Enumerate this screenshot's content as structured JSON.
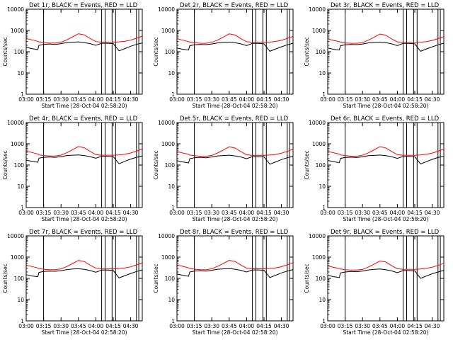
{
  "figure": {
    "background": "#ffffff"
  },
  "colors": {
    "events": "#000000",
    "lld": "#ff0000",
    "axes": "#000000"
  },
  "chart_data": [
    {
      "type": "line",
      "title": "Det 1r, BLACK = Events, RED = LLD",
      "xlabel": "Start Time (28-Oct-04 02:58:20)",
      "ylabel": "Counts/sec",
      "yscale": "log",
      "ylim": [
        1,
        10000
      ],
      "xlim": [
        "03:00",
        "04:40"
      ],
      "x_tick_labels": [
        "03:00",
        "03:15",
        "03:30",
        "03:45",
        "04:00",
        "04:15",
        "04:30"
      ],
      "y_tick_labels": [
        "1",
        "10",
        "100",
        "1000",
        "10000"
      ],
      "x": [
        "03:00",
        "03:05",
        "03:10",
        "03:11",
        "03:15",
        "03:20",
        "03:25",
        "03:30",
        "03:35",
        "03:40",
        "03:45",
        "03:50",
        "03:55",
        "04:00",
        "04:05",
        "04:10",
        "04:15",
        "04:20",
        "04:25",
        "04:30",
        "04:35",
        "04:40"
      ],
      "series": [
        {
          "name": "Events",
          "color": "#000000",
          "values": [
            160,
            140,
            125,
            200,
            220,
            230,
            220,
            240,
            270,
            280,
            290,
            270,
            240,
            200,
            250,
            250,
            240,
            110,
            140,
            180,
            220,
            260
          ]
        },
        {
          "name": "LLD",
          "color": "#ff0000",
          "values": [
            420,
            360,
            310,
            290,
            270,
            255,
            255,
            280,
            360,
            500,
            700,
            620,
            420,
            300,
            280,
            280,
            280,
            290,
            310,
            350,
            430,
            540
          ]
        }
      ],
      "vertical_markers": [
        "03:15",
        "04:05",
        "04:08",
        "04:14",
        "04:17",
        "04:35",
        "04:37"
      ]
    },
    {
      "type": "line",
      "title": "Det 2r, BLACK = Events, RED = LLD",
      "xlabel": "Start Time (28-Oct-04 02:58:20)",
      "ylabel": "Counts/sec",
      "yscale": "log",
      "ylim": [
        1,
        10000
      ],
      "xlim": [
        "03:00",
        "04:40"
      ],
      "x_tick_labels": [
        "03:00",
        "03:15",
        "03:30",
        "03:45",
        "04:00",
        "04:15",
        "04:30"
      ],
      "y_tick_labels": [
        "1",
        "10",
        "100",
        "1000",
        "10000"
      ],
      "x": [
        "03:00",
        "03:05",
        "03:10",
        "03:11",
        "03:15",
        "03:20",
        "03:25",
        "03:30",
        "03:35",
        "03:40",
        "03:45",
        "03:50",
        "03:55",
        "04:00",
        "04:05",
        "04:10",
        "04:15",
        "04:20",
        "04:25",
        "04:30",
        "04:35",
        "04:40"
      ],
      "series": [
        {
          "name": "Events",
          "color": "#000000",
          "values": [
            150,
            130,
            120,
            190,
            210,
            220,
            215,
            230,
            260,
            275,
            285,
            265,
            235,
            195,
            245,
            245,
            235,
            105,
            135,
            170,
            210,
            250
          ]
        },
        {
          "name": "LLD",
          "color": "#ff0000",
          "values": [
            410,
            350,
            300,
            285,
            265,
            250,
            250,
            275,
            350,
            490,
            690,
            610,
            410,
            295,
            275,
            275,
            275,
            285,
            305,
            345,
            420,
            530
          ]
        }
      ],
      "vertical_markers": [
        "03:15",
        "04:05",
        "04:08",
        "04:14",
        "04:17",
        "04:35",
        "04:37"
      ]
    },
    {
      "type": "line",
      "title": "Det 3r, BLACK = Events, RED = LLD",
      "xlabel": "Start Time (28-Oct-04 02:58:20)",
      "ylabel": "Counts/sec",
      "yscale": "log",
      "ylim": [
        1,
        10000
      ],
      "xlim": [
        "03:00",
        "04:40"
      ],
      "x_tick_labels": [
        "03:00",
        "03:15",
        "03:30",
        "03:45",
        "04:00",
        "04:15",
        "04:30"
      ],
      "y_tick_labels": [
        "1",
        "10",
        "100",
        "1000",
        "10000"
      ],
      "x": [
        "03:00",
        "03:05",
        "03:10",
        "03:11",
        "03:15",
        "03:20",
        "03:25",
        "03:30",
        "03:35",
        "03:40",
        "03:45",
        "03:50",
        "03:55",
        "04:00",
        "04:05",
        "04:10",
        "04:15",
        "04:20",
        "04:25",
        "04:30",
        "04:35",
        "04:40"
      ],
      "series": [
        {
          "name": "Events",
          "color": "#000000",
          "values": [
            150,
            130,
            120,
            190,
            210,
            220,
            215,
            230,
            260,
            275,
            285,
            265,
            235,
            195,
            245,
            245,
            235,
            105,
            135,
            170,
            210,
            250
          ]
        },
        {
          "name": "LLD",
          "color": "#ff0000",
          "values": [
            400,
            340,
            300,
            280,
            260,
            250,
            250,
            270,
            350,
            480,
            680,
            600,
            400,
            290,
            270,
            270,
            270,
            280,
            300,
            340,
            410,
            520
          ]
        }
      ],
      "vertical_markers": [
        "03:15",
        "04:05",
        "04:08",
        "04:14",
        "04:17",
        "04:35",
        "04:37"
      ]
    },
    {
      "type": "line",
      "title": "Det 4r, BLACK = Events, RED = LLD",
      "xlabel": "Start Time (28-Oct-04 02:58:20)",
      "ylabel": "Counts/sec",
      "yscale": "log",
      "ylim": [
        1,
        10000
      ],
      "xlim": [
        "03:00",
        "04:40"
      ],
      "x_tick_labels": [
        "03:00",
        "03:15",
        "03:30",
        "03:45",
        "04:00",
        "04:15",
        "04:30"
      ],
      "y_tick_labels": [
        "1",
        "10",
        "100",
        "1000",
        "10000"
      ],
      "x": [
        "03:00",
        "03:05",
        "03:10",
        "03:11",
        "03:15",
        "03:20",
        "03:25",
        "03:30",
        "03:35",
        "03:40",
        "03:45",
        "03:50",
        "03:55",
        "04:00",
        "04:05",
        "04:10",
        "04:15",
        "04:20",
        "04:25",
        "04:30",
        "04:35",
        "04:40"
      ],
      "series": [
        {
          "name": "Events",
          "color": "#000000",
          "values": [
            170,
            150,
            135,
            210,
            230,
            240,
            230,
            250,
            280,
            290,
            300,
            280,
            250,
            210,
            260,
            260,
            250,
            115,
            150,
            190,
            230,
            270
          ]
        },
        {
          "name": "LLD",
          "color": "#ff0000",
          "values": [
            450,
            390,
            330,
            300,
            280,
            265,
            265,
            290,
            380,
            530,
            740,
            650,
            440,
            310,
            290,
            290,
            290,
            300,
            320,
            370,
            450,
            570
          ]
        }
      ],
      "vertical_markers": [
        "03:15",
        "04:05",
        "04:08",
        "04:14",
        "04:17",
        "04:35",
        "04:37"
      ]
    },
    {
      "type": "line",
      "title": "Det 5r, BLACK = Events, RED = LLD",
      "xlabel": "Start Time (28-Oct-04 02:58:20)",
      "ylabel": "Counts/sec",
      "yscale": "log",
      "ylim": [
        1,
        10000
      ],
      "xlim": [
        "03:00",
        "04:40"
      ],
      "x_tick_labels": [
        "03:00",
        "03:15",
        "03:30",
        "03:45",
        "04:00",
        "04:15",
        "04:30"
      ],
      "y_tick_labels": [
        "1",
        "10",
        "100",
        "1000",
        "10000"
      ],
      "x": [
        "03:00",
        "03:05",
        "03:10",
        "03:11",
        "03:15",
        "03:20",
        "03:25",
        "03:30",
        "03:35",
        "03:40",
        "03:45",
        "03:50",
        "03:55",
        "04:00",
        "04:05",
        "04:10",
        "04:15",
        "04:20",
        "04:25",
        "04:30",
        "04:35",
        "04:40"
      ],
      "series": [
        {
          "name": "Events",
          "color": "#000000",
          "values": [
            160,
            140,
            125,
            200,
            220,
            230,
            220,
            240,
            270,
            280,
            290,
            270,
            240,
            200,
            250,
            250,
            240,
            110,
            140,
            180,
            220,
            260
          ]
        },
        {
          "name": "LLD",
          "color": "#ff0000",
          "values": [
            430,
            370,
            320,
            295,
            275,
            260,
            260,
            285,
            370,
            510,
            720,
            630,
            430,
            305,
            285,
            285,
            285,
            295,
            315,
            360,
            440,
            560
          ]
        }
      ],
      "vertical_markers": [
        "03:15",
        "04:05",
        "04:08",
        "04:14",
        "04:17",
        "04:35",
        "04:37"
      ]
    },
    {
      "type": "line",
      "title": "Det 6r, BLACK = Events, RED = LLD",
      "xlabel": "Start Time (28-Oct-04 02:58:20)",
      "ylabel": "Counts/sec",
      "yscale": "log",
      "ylim": [
        1,
        10000
      ],
      "xlim": [
        "03:00",
        "04:40"
      ],
      "x_tick_labels": [
        "03:00",
        "03:15",
        "03:30",
        "03:45",
        "04:00",
        "04:15",
        "04:30"
      ],
      "y_tick_labels": [
        "1",
        "10",
        "100",
        "1000",
        "10000"
      ],
      "x": [
        "03:00",
        "03:05",
        "03:10",
        "03:11",
        "03:15",
        "03:20",
        "03:25",
        "03:30",
        "03:35",
        "03:40",
        "03:45",
        "03:50",
        "03:55",
        "04:00",
        "04:05",
        "04:10",
        "04:15",
        "04:20",
        "04:25",
        "04:30",
        "04:35",
        "04:40"
      ],
      "series": [
        {
          "name": "Events",
          "color": "#000000",
          "values": [
            165,
            145,
            130,
            205,
            225,
            235,
            225,
            245,
            275,
            285,
            295,
            275,
            245,
            205,
            255,
            255,
            245,
            112,
            145,
            185,
            225,
            265
          ]
        },
        {
          "name": "LLD",
          "color": "#ff0000",
          "values": [
            440,
            380,
            325,
            300,
            280,
            262,
            262,
            288,
            375,
            520,
            730,
            640,
            435,
            308,
            288,
            288,
            288,
            298,
            318,
            365,
            445,
            565
          ]
        }
      ],
      "vertical_markers": [
        "03:15",
        "04:05",
        "04:08",
        "04:14",
        "04:17",
        "04:35",
        "04:37"
      ]
    },
    {
      "type": "line",
      "title": "Det 7r, BLACK = Events, RED = LLD",
      "xlabel": "Start Time (28-Oct-04 02:58:20)",
      "ylabel": "Counts/sec",
      "yscale": "log",
      "ylim": [
        1,
        10000
      ],
      "xlim": [
        "03:00",
        "04:40"
      ],
      "x_tick_labels": [
        "03:00",
        "03:15",
        "03:30",
        "03:45",
        "04:00",
        "04:15",
        "04:30"
      ],
      "y_tick_labels": [
        "1",
        "10",
        "100",
        "1000",
        "10000"
      ],
      "x": [
        "03:00",
        "03:05",
        "03:10",
        "03:11",
        "03:15",
        "03:20",
        "03:25",
        "03:30",
        "03:35",
        "03:40",
        "03:45",
        "03:50",
        "03:55",
        "04:00",
        "04:05",
        "04:10",
        "04:15",
        "04:20",
        "04:25",
        "04:30",
        "04:35",
        "04:40"
      ],
      "series": [
        {
          "name": "Events",
          "color": "#000000",
          "values": [
            150,
            130,
            120,
            190,
            210,
            220,
            215,
            230,
            260,
            275,
            285,
            265,
            235,
            195,
            245,
            245,
            235,
            105,
            135,
            170,
            210,
            250
          ]
        },
        {
          "name": "LLD",
          "color": "#ff0000",
          "values": [
            420,
            360,
            310,
            290,
            270,
            255,
            255,
            280,
            360,
            500,
            700,
            620,
            420,
            300,
            280,
            280,
            280,
            290,
            310,
            350,
            430,
            540
          ]
        }
      ],
      "vertical_markers": [
        "03:15",
        "04:05",
        "04:08",
        "04:14",
        "04:17",
        "04:35",
        "04:37"
      ]
    },
    {
      "type": "line",
      "title": "Det 8r, BLACK = Events, RED = LLD",
      "xlabel": "Start Time (28-Oct-04 02:58:20)",
      "ylabel": "Counts/sec",
      "yscale": "log",
      "ylim": [
        1,
        10000
      ],
      "xlim": [
        "03:00",
        "04:40"
      ],
      "x_tick_labels": [
        "03:00",
        "03:15",
        "03:30",
        "03:45",
        "04:00",
        "04:15",
        "04:30"
      ],
      "y_tick_labels": [
        "1",
        "10",
        "100",
        "1000",
        "10000"
      ],
      "x": [
        "03:00",
        "03:05",
        "03:10",
        "03:11",
        "03:15",
        "03:20",
        "03:25",
        "03:30",
        "03:35",
        "03:40",
        "03:45",
        "03:50",
        "03:55",
        "04:00",
        "04:05",
        "04:10",
        "04:15",
        "04:20",
        "04:25",
        "04:30",
        "04:35",
        "04:40"
      ],
      "series": [
        {
          "name": "Events",
          "color": "#000000",
          "values": [
            160,
            140,
            125,
            200,
            220,
            230,
            220,
            240,
            270,
            280,
            290,
            270,
            240,
            200,
            250,
            250,
            240,
            110,
            140,
            180,
            220,
            260
          ]
        },
        {
          "name": "LLD",
          "color": "#ff0000",
          "values": [
            430,
            370,
            315,
            292,
            272,
            258,
            258,
            282,
            365,
            505,
            710,
            625,
            425,
            302,
            282,
            282,
            282,
            292,
            312,
            355,
            435,
            550
          ]
        }
      ],
      "vertical_markers": [
        "03:15",
        "04:05",
        "04:08",
        "04:14",
        "04:17",
        "04:35",
        "04:37"
      ]
    },
    {
      "type": "line",
      "title": "Det 9r, BLACK = Events, RED = LLD",
      "xlabel": "Start Time (28-Oct-04 02:58:20)",
      "ylabel": "Counts/sec",
      "yscale": "log",
      "ylim": [
        1,
        10000
      ],
      "xlim": [
        "03:00",
        "04:40"
      ],
      "x_tick_labels": [
        "03:00",
        "03:15",
        "03:30",
        "03:45",
        "04:00",
        "04:15",
        "04:30"
      ],
      "y_tick_labels": [
        "1",
        "10",
        "100",
        "1000",
        "10000"
      ],
      "x": [
        "03:00",
        "03:05",
        "03:10",
        "03:11",
        "03:15",
        "03:20",
        "03:25",
        "03:30",
        "03:35",
        "03:40",
        "03:45",
        "03:50",
        "03:55",
        "04:00",
        "04:05",
        "04:10",
        "04:15",
        "04:20",
        "04:25",
        "04:30",
        "04:35",
        "04:40"
      ],
      "series": [
        {
          "name": "Events",
          "color": "#000000",
          "values": [
            140,
            120,
            110,
            180,
            200,
            210,
            205,
            220,
            250,
            265,
            275,
            255,
            225,
            185,
            235,
            235,
            225,
            100,
            130,
            165,
            200,
            240
          ]
        },
        {
          "name": "LLD",
          "color": "#ff0000",
          "values": [
            390,
            330,
            290,
            275,
            255,
            245,
            245,
            265,
            340,
            470,
            660,
            590,
            395,
            285,
            265,
            265,
            265,
            275,
            295,
            335,
            405,
            510
          ]
        }
      ],
      "vertical_markers": [
        "03:15",
        "04:05",
        "04:08",
        "04:14",
        "04:17",
        "04:35",
        "04:37"
      ]
    }
  ]
}
